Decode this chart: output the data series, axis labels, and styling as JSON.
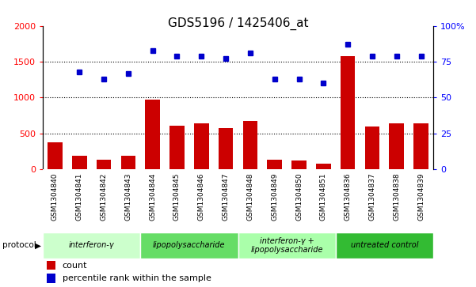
{
  "title": "GDS5196 / 1425406_at",
  "samples": [
    "GSM1304840",
    "GSM1304841",
    "GSM1304842",
    "GSM1304843",
    "GSM1304844",
    "GSM1304845",
    "GSM1304846",
    "GSM1304847",
    "GSM1304848",
    "GSM1304849",
    "GSM1304850",
    "GSM1304851",
    "GSM1304836",
    "GSM1304837",
    "GSM1304838",
    "GSM1304839"
  ],
  "counts": [
    380,
    190,
    130,
    185,
    975,
    610,
    640,
    570,
    670,
    130,
    120,
    80,
    1580,
    600,
    640,
    640
  ],
  "percentiles": [
    null,
    68,
    63,
    67,
    83,
    79,
    79,
    77,
    81,
    63,
    63,
    60,
    87,
    79,
    79,
    79
  ],
  "groups": [
    {
      "label": "interferon-γ",
      "start": 0,
      "end": 4,
      "color": "#ccffcc"
    },
    {
      "label": "lipopolysaccharide",
      "start": 4,
      "end": 8,
      "color": "#66dd66"
    },
    {
      "label": "interferon-γ +\nlipopolysaccharide",
      "start": 8,
      "end": 12,
      "color": "#aaffaa"
    },
    {
      "label": "untreated control",
      "start": 12,
      "end": 16,
      "color": "#33bb33"
    }
  ],
  "ylim_left": [
    0,
    2000
  ],
  "ylim_right": [
    0,
    100
  ],
  "yticks_left": [
    0,
    500,
    1000,
    1500,
    2000
  ],
  "yticks_right": [
    0,
    25,
    50,
    75,
    100
  ],
  "bar_color": "#cc0000",
  "scatter_color": "#0000cc",
  "cell_bg": "#d0d0d0",
  "title_fontsize": 11
}
